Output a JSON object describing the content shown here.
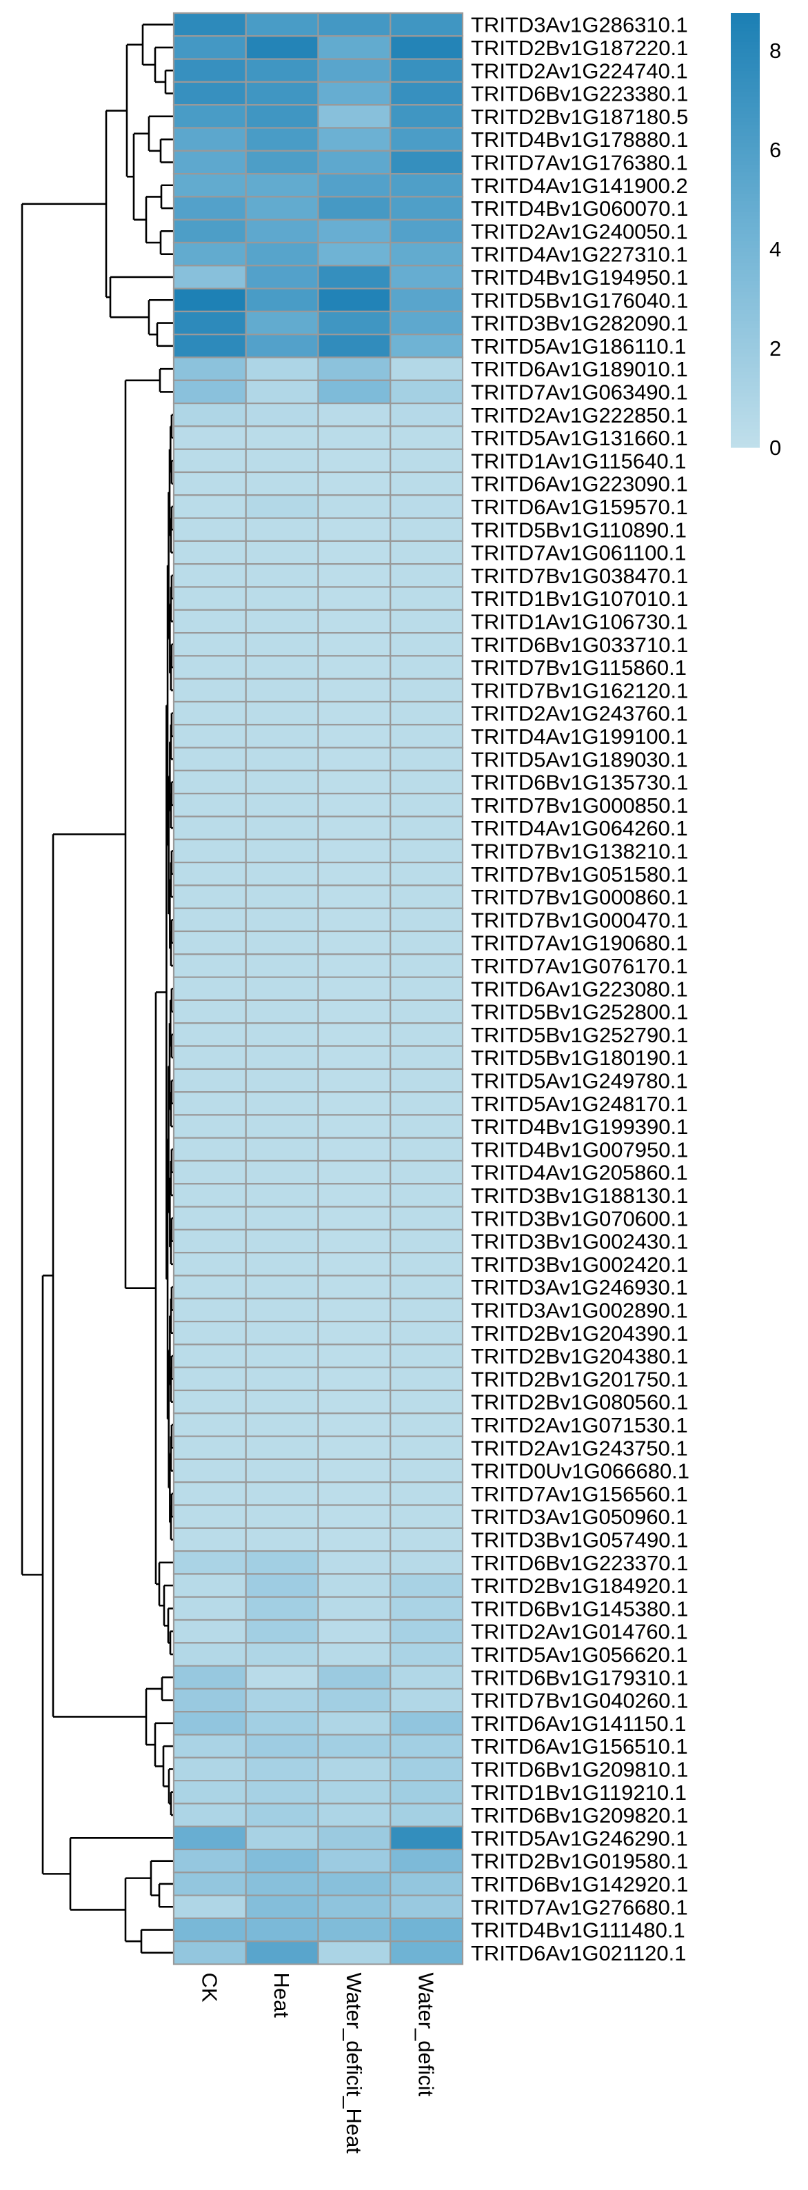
{
  "chart_data": {
    "type": "heatmap",
    "title": "",
    "columns": [
      "CK",
      "Heat",
      "Water_deficit_Heat",
      "Water_deficit"
    ],
    "rows": [
      "TRITD3Av1G286310.1",
      "TRITD2Bv1G187220.1",
      "TRITD2Av1G224740.1",
      "TRITD6Bv1G223380.1",
      "TRITD2Bv1G187180.5",
      "TRITD4Bv1G178880.1",
      "TRITD7Av1G176380.1",
      "TRITD4Av1G141900.2",
      "TRITD4Bv1G060070.1",
      "TRITD2Av1G240050.1",
      "TRITD4Av1G227310.1",
      "TRITD4Bv1G194950.1",
      "TRITD5Bv1G176040.1",
      "TRITD3Bv1G282090.1",
      "TRITD5Av1G186110.1",
      "TRITD6Av1G189010.1",
      "TRITD7Av1G063490.1",
      "TRITD2Av1G222850.1",
      "TRITD5Av1G131660.1",
      "TRITD1Av1G115640.1",
      "TRITD6Av1G223090.1",
      "TRITD6Av1G159570.1",
      "TRITD5Bv1G110890.1",
      "TRITD7Av1G061100.1",
      "TRITD7Bv1G038470.1",
      "TRITD1Bv1G107010.1",
      "TRITD1Av1G106730.1",
      "TRITD6Bv1G033710.1",
      "TRITD7Bv1G115860.1",
      "TRITD7Bv1G162120.1",
      "TRITD2Av1G243760.1",
      "TRITD4Av1G199100.1",
      "TRITD5Av1G189030.1",
      "TRITD6Bv1G135730.1",
      "TRITD7Bv1G000850.1",
      "TRITD4Av1G064260.1",
      "TRITD7Bv1G138210.1",
      "TRITD7Bv1G051580.1",
      "TRITD7Bv1G000860.1",
      "TRITD7Bv1G000470.1",
      "TRITD7Av1G190680.1",
      "TRITD7Av1G076170.1",
      "TRITD6Av1G223080.1",
      "TRITD5Bv1G252800.1",
      "TRITD5Bv1G252790.1",
      "TRITD5Bv1G180190.1",
      "TRITD5Av1G249780.1",
      "TRITD5Av1G248170.1",
      "TRITD4Bv1G199390.1",
      "TRITD4Bv1G007950.1",
      "TRITD4Av1G205860.1",
      "TRITD3Bv1G188130.1",
      "TRITD3Bv1G070600.1",
      "TRITD3Bv1G002430.1",
      "TRITD3Bv1G002420.1",
      "TRITD3Av1G246930.1",
      "TRITD3Av1G002890.1",
      "TRITD2Bv1G204390.1",
      "TRITD2Bv1G204380.1",
      "TRITD2Bv1G201750.1",
      "TRITD2Bv1G080560.1",
      "TRITD2Av1G071530.1",
      "TRITD2Av1G243750.1",
      "TRITD0Uv1G066680.1",
      "TRITD7Av1G156560.1",
      "TRITD3Av1G050960.1",
      "TRITD3Bv1G057490.1",
      "TRITD6Bv1G223370.1",
      "TRITD2Bv1G184920.1",
      "TRITD6Bv1G145380.1",
      "TRITD2Av1G014760.1",
      "TRITD5Av1G056620.1",
      "TRITD6Bv1G179310.1",
      "TRITD7Bv1G040260.1",
      "TRITD6Av1G141150.1",
      "TRITD6Av1G156510.1",
      "TRITD6Bv1G209810.1",
      "TRITD1Bv1G119210.1",
      "TRITD6Bv1G209820.1",
      "TRITD5Av1G246290.1",
      "TRITD2Bv1G019580.1",
      "TRITD6Bv1G142920.1",
      "TRITD7Av1G276680.1",
      "TRITD4Bv1G111480.1",
      "TRITD6Av1G021120.1"
    ],
    "values": [
      [
        7.8,
        6.3,
        6.6,
        6.8
      ],
      [
        6.6,
        8.3,
        5.0,
        8.3
      ],
      [
        7.3,
        6.8,
        5.5,
        7.2
      ],
      [
        7.3,
        6.8,
        4.8,
        7.3
      ],
      [
        6.3,
        6.8,
        3.0,
        6.8
      ],
      [
        5.3,
        6.3,
        4.5,
        6.2
      ],
      [
        5.2,
        6.1,
        5.2,
        7.4
      ],
      [
        5.0,
        5.0,
        5.8,
        6.0
      ],
      [
        5.8,
        5.0,
        6.5,
        6.0
      ],
      [
        6.1,
        5.2,
        4.7,
        5.8
      ],
      [
        5.0,
        5.6,
        4.3,
        5.0
      ],
      [
        3.0,
        5.8,
        7.4,
        4.8
      ],
      [
        8.6,
        6.3,
        8.4,
        5.5
      ],
      [
        7.8,
        5.0,
        6.8,
        5.2
      ],
      [
        7.8,
        5.8,
        7.6,
        4.3
      ],
      [
        2.8,
        1.0,
        2.8,
        0.7
      ],
      [
        2.9,
        0.8,
        3.5,
        1.5
      ],
      [
        0.9,
        0.6,
        0.4,
        0.6
      ],
      [
        0.4,
        0.3,
        0.3,
        0.3
      ],
      [
        0.3,
        0.3,
        0.2,
        0.3
      ],
      [
        0.3,
        0.3,
        0.2,
        0.3
      ],
      [
        0.3,
        0.7,
        0.3,
        0.4
      ],
      [
        0.3,
        0.3,
        0.2,
        0.3
      ],
      [
        0.3,
        0.3,
        0.2,
        0.3
      ],
      [
        0.3,
        0.3,
        0.2,
        0.3
      ],
      [
        0.3,
        0.3,
        0.2,
        0.3
      ],
      [
        0.3,
        0.3,
        0.2,
        0.3
      ],
      [
        0.3,
        0.3,
        0.2,
        0.3
      ],
      [
        0.3,
        0.3,
        0.2,
        0.3
      ],
      [
        0.3,
        0.3,
        0.2,
        0.3
      ],
      [
        0.3,
        0.3,
        0.2,
        0.3
      ],
      [
        0.3,
        0.3,
        0.2,
        0.3
      ],
      [
        0.3,
        0.3,
        0.2,
        0.3
      ],
      [
        0.3,
        0.3,
        0.2,
        0.3
      ],
      [
        0.3,
        0.3,
        0.2,
        0.3
      ],
      [
        0.3,
        0.3,
        0.2,
        0.3
      ],
      [
        0.3,
        0.3,
        0.2,
        0.3
      ],
      [
        0.3,
        0.3,
        0.2,
        0.3
      ],
      [
        0.3,
        0.3,
        0.2,
        0.3
      ],
      [
        0.3,
        0.3,
        0.2,
        0.3
      ],
      [
        0.3,
        0.3,
        0.2,
        0.3
      ],
      [
        0.3,
        0.3,
        0.2,
        0.3
      ],
      [
        0.3,
        0.3,
        0.2,
        0.3
      ],
      [
        0.3,
        0.3,
        0.2,
        0.3
      ],
      [
        0.3,
        0.3,
        0.2,
        0.3
      ],
      [
        0.3,
        0.3,
        0.2,
        0.3
      ],
      [
        0.3,
        0.3,
        0.2,
        0.3
      ],
      [
        0.3,
        0.3,
        0.2,
        0.3
      ],
      [
        0.3,
        0.3,
        0.2,
        0.3
      ],
      [
        0.3,
        0.3,
        0.2,
        0.3
      ],
      [
        0.3,
        0.3,
        0.2,
        0.3
      ],
      [
        0.3,
        0.3,
        0.2,
        0.3
      ],
      [
        0.3,
        0.3,
        0.2,
        0.3
      ],
      [
        0.3,
        0.3,
        0.2,
        0.3
      ],
      [
        0.3,
        0.3,
        0.2,
        0.3
      ],
      [
        0.3,
        0.3,
        0.2,
        0.3
      ],
      [
        0.3,
        0.3,
        0.2,
        0.3
      ],
      [
        0.3,
        0.3,
        0.2,
        0.3
      ],
      [
        0.3,
        0.3,
        0.2,
        0.3
      ],
      [
        0.3,
        0.3,
        0.2,
        0.3
      ],
      [
        0.3,
        0.3,
        0.2,
        0.3
      ],
      [
        0.3,
        0.3,
        0.2,
        0.3
      ],
      [
        0.3,
        0.3,
        0.2,
        0.3
      ],
      [
        0.3,
        0.3,
        0.2,
        0.3
      ],
      [
        0.3,
        0.3,
        0.2,
        0.3
      ],
      [
        0.3,
        0.3,
        0.2,
        0.3
      ],
      [
        0.3,
        0.3,
        0.2,
        0.3
      ],
      [
        1.2,
        1.6,
        0.4,
        0.5
      ],
      [
        0.5,
        1.8,
        0.5,
        1.3
      ],
      [
        0.5,
        1.6,
        0.5,
        1.2
      ],
      [
        0.5,
        1.6,
        0.4,
        1.4
      ],
      [
        0.7,
        0.9,
        0.5,
        1.2
      ],
      [
        2.2,
        0.4,
        2.0,
        0.8
      ],
      [
        2.1,
        1.2,
        1.6,
        0.8
      ],
      [
        2.5,
        1.6,
        0.9,
        2.5
      ],
      [
        1.2,
        1.8,
        1.6,
        1.6
      ],
      [
        0.9,
        1.4,
        0.9,
        1.6
      ],
      [
        1.1,
        1.4,
        1.1,
        1.7
      ],
      [
        1.0,
        1.6,
        1.0,
        1.5
      ],
      [
        4.7,
        1.3,
        2.0,
        7.5
      ],
      [
        2.3,
        3.3,
        1.9,
        3.6
      ],
      [
        2.4,
        3.0,
        3.0,
        2.4
      ],
      [
        0.9,
        3.2,
        2.6,
        2.1
      ],
      [
        3.8,
        3.7,
        3.4,
        4.2
      ],
      [
        2.4,
        5.5,
        1.1,
        4.3
      ]
    ],
    "colorbar": {
      "range": [
        0,
        8.75
      ],
      "ticks": [
        "0",
        "2",
        "4",
        "6",
        "8"
      ],
      "colors": [
        "#c0dfeb",
        "#6eb2d4",
        "#1b7fb4"
      ]
    },
    "cell_border_color": "#999999",
    "row_dendrogram": true,
    "column_dendrogram": false
  }
}
